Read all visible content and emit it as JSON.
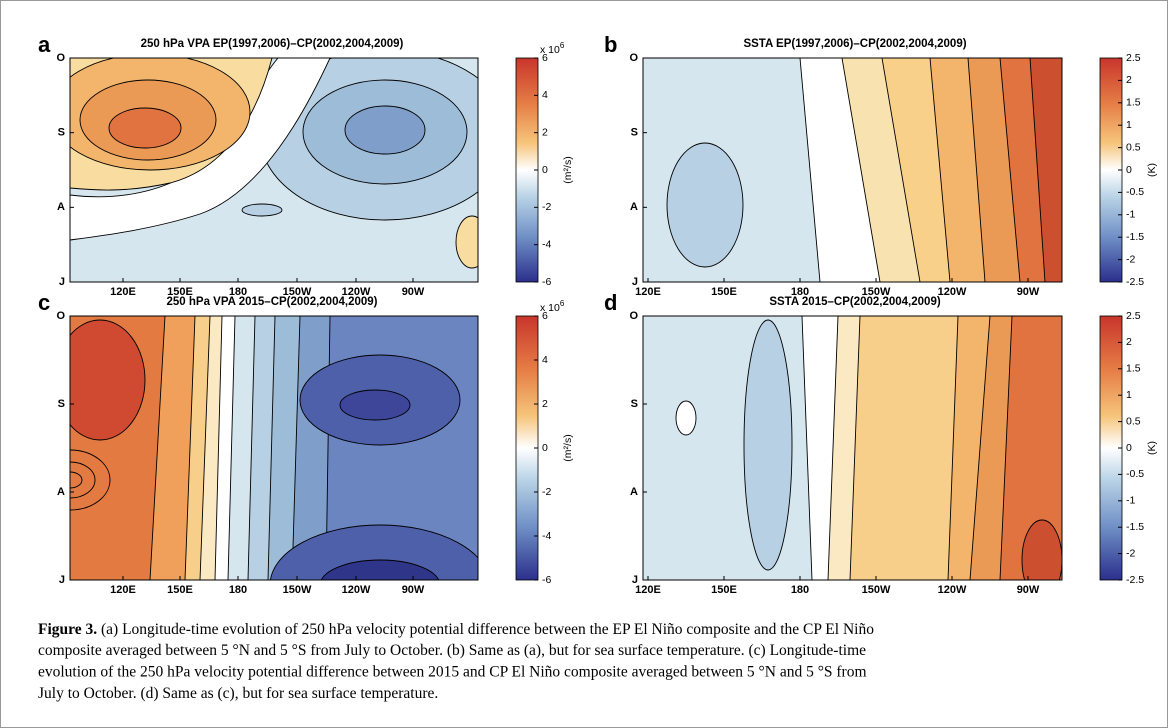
{
  "figure": {
    "panels": [
      {
        "label": "a",
        "title": "250 hPa VPA EP(1997,2006)–CP(2002,2004,2009)",
        "x_ticks": [
          "120E",
          "150E",
          "180",
          "150W",
          "120W",
          "90W"
        ],
        "y_ticks": [
          "O",
          "S",
          "A",
          "J"
        ],
        "colorbar": {
          "lim": [
            -6,
            6
          ],
          "ticks": [
            6,
            4,
            2,
            0,
            -2,
            -4,
            -6
          ],
          "scale": {
            "text": "x 10",
            "exponent": "6"
          },
          "unit": "(m²/s)"
        }
      },
      {
        "label": "b",
        "title": "SSTA EP(1997,2006)–CP(2002,2004,2009)",
        "x_ticks": [
          "120E",
          "150E",
          "180",
          "150W",
          "120W",
          "90W"
        ],
        "y_ticks": [
          "O",
          "S",
          "A",
          "J"
        ],
        "colorbar": {
          "lim": [
            -2.5,
            2.5
          ],
          "ticks": [
            2.5,
            2,
            1.5,
            1,
            0.5,
            0,
            -0.5,
            -1,
            -1.5,
            -2,
            -2.5
          ],
          "unit": "(K)"
        }
      },
      {
        "label": "c",
        "title": "250 hPa VPA 2015–CP(2002,2004,2009)",
        "x_ticks": [
          "120E",
          "150E",
          "180",
          "150W",
          "120W",
          "90W"
        ],
        "y_ticks": [
          "O",
          "S",
          "A",
          "J"
        ],
        "colorbar": {
          "lim": [
            -6,
            6
          ],
          "ticks": [
            6,
            4,
            2,
            0,
            -2,
            -4,
            -6
          ],
          "scale": {
            "text": "x 10",
            "exponent": "6"
          },
          "unit": "(m²/s)"
        }
      },
      {
        "label": "d",
        "title": "SSTA 2015–CP(2002,2004,2009)",
        "x_ticks": [
          "120E",
          "150E",
          "180",
          "150W",
          "120W",
          "90W"
        ],
        "y_ticks": [
          "O",
          "S",
          "A",
          "J"
        ],
        "colorbar": {
          "lim": [
            -2.5,
            2.5
          ],
          "ticks": [
            2.5,
            2,
            1.5,
            1,
            0.5,
            0,
            -0.5,
            -1,
            -1.5,
            -2,
            -2.5
          ],
          "unit": "(K)"
        }
      }
    ],
    "caption": {
      "label": "Figure 3.",
      "lines": [
        " (a) Longitude-time evolution of 250 hPa velocity potential difference between the EP El Niño composite and the CP El Niño",
        "composite averaged between 5 °N and 5 °S from July to October. (b) Same as (a), but for sea surface temperature. (c) Longitude-time",
        "evolution of the 250 hPa velocity potential difference between 2015 and CP El Niño composite averaged between 5 °N and 5 °S from",
        "July to October. (d) Same as (c), but for sea surface temperature."
      ]
    }
  }
}
